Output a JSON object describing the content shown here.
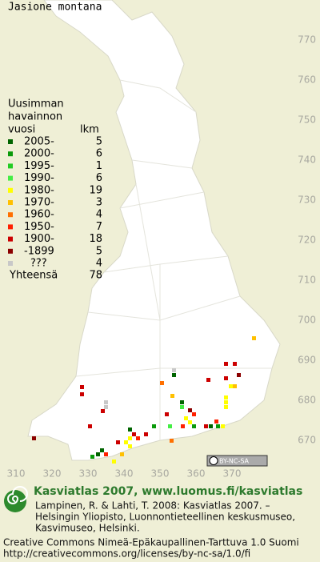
{
  "title": "Jasione montana",
  "map": {
    "x_ticks": [
      310,
      320,
      330,
      340,
      350,
      360,
      370
    ],
    "y_ticks": [
      770,
      760,
      750,
      740,
      730,
      720,
      710,
      700,
      690,
      680,
      670
    ],
    "cc_badge": "BY-NC-SA"
  },
  "legend": {
    "heading": [
      "Uusimman",
      "havainnon",
      "vuosi"
    ],
    "count_heading": "lkm",
    "rows": [
      {
        "label": "2005-",
        "count": 5,
        "color": "#006400"
      },
      {
        "label": "2000-",
        "count": 6,
        "color": "#0a9a0a"
      },
      {
        "label": "1995-",
        "count": 1,
        "color": "#22cc22"
      },
      {
        "label": "1990-",
        "count": 6,
        "color": "#44ee44"
      },
      {
        "label": "1980-",
        "count": 19,
        "color": "#ffff00"
      },
      {
        "label": "1970-",
        "count": 3,
        "color": "#ffc000"
      },
      {
        "label": "1960-",
        "count": 4,
        "color": "#ff7000"
      },
      {
        "label": "1950-",
        "count": 7,
        "color": "#ff2000"
      },
      {
        "label": "1900-",
        "count": 18,
        "color": "#cc0000"
      },
      {
        "label": "-1899",
        "count": 5,
        "color": "#8b0000"
      },
      {
        "label": "???",
        "count": 4,
        "color": "#c8c8c8"
      }
    ],
    "total": {
      "label": "Yhteensä",
      "value": 78
    }
  },
  "footer": {
    "brand": "Kasviatlas 2007, www.luomus.fi/kasviatlas",
    "citation": [
      "Lampinen, R. & Lahti, T. 2008: Kasviatlas 2007. –",
      "Helsingin Yliopisto, Luonnontieteellinen keskusmuseo,",
      "Kasvimuseo, Helsinki."
    ],
    "license": [
      "Creative Commons Nimeä-Epäkaupallinen-Tarttuva 1.0 Suomi",
      "http://creativecommons.org/licenses/by-nc-sa/1.0/fi"
    ]
  }
}
